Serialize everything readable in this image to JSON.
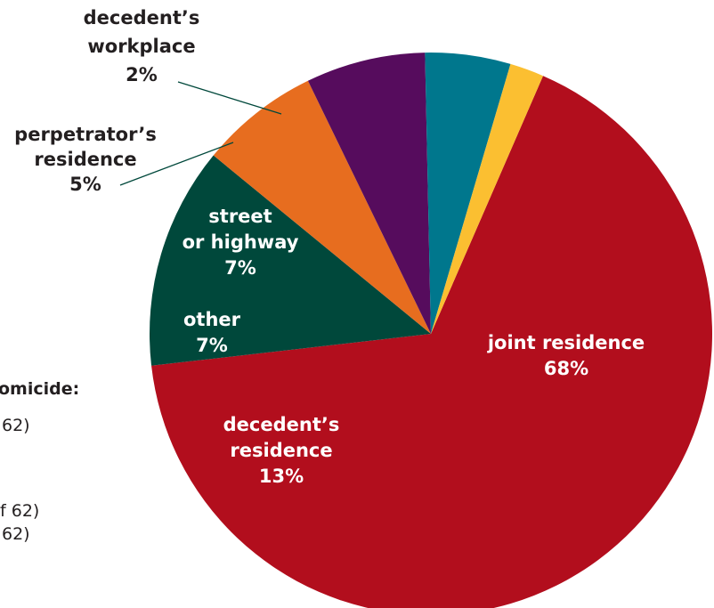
{
  "chart_data": {
    "type": "pie",
    "slices": [
      {
        "label_lines": [
          "joint residence",
          "68%"
        ],
        "value": 68,
        "color": "#b20e1d",
        "label_color": "#ffffff"
      },
      {
        "label_lines": [
          "decedent’s",
          "residence",
          "13%"
        ],
        "value": 13,
        "color": "#00483b",
        "label_color": "#ffffff"
      },
      {
        "label_lines": [
          "other",
          "7%"
        ],
        "value": 7,
        "color": "#e76d1f",
        "label_color": "#ffffff"
      },
      {
        "label_lines": [
          "street",
          "or highway",
          "7%"
        ],
        "value": 7,
        "color": "#560c5d",
        "label_color": "#ffffff"
      },
      {
        "label_lines": [
          "perpetrator’s",
          "residence",
          "5%"
        ],
        "value": 5,
        "color": "#00778d",
        "label_color": "#231f20"
      },
      {
        "label_lines": [
          "decedent’s",
          "workplace",
          "2%"
        ],
        "value": 2,
        "color": "#fbbf31",
        "label_color": "#231f20"
      }
    ]
  },
  "side_text": {
    "heading": "omicide:",
    "line1": "62)",
    "line2": "f 62)",
    "line3": "62)"
  }
}
